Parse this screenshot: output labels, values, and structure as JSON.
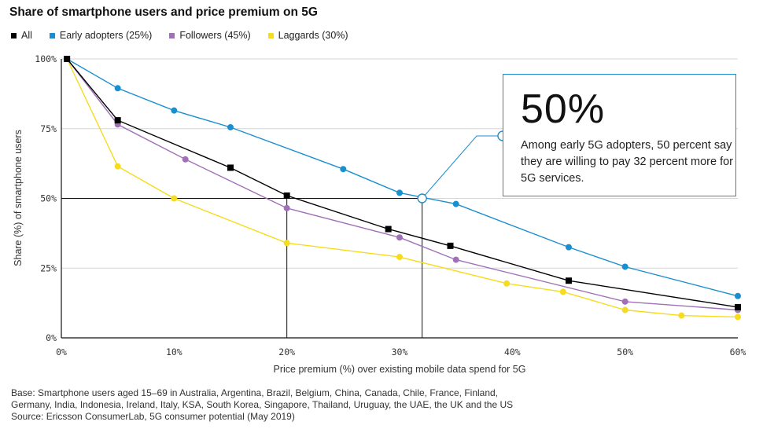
{
  "title": "Share of smartphone users and price premium on 5G",
  "legend": [
    {
      "label": "All",
      "color": "#000000"
    },
    {
      "label": "Early adopters (25%)",
      "color": "#1a8fcf"
    },
    {
      "label": "Followers (45%)",
      "color": "#a070b8"
    },
    {
      "label": "Laggards (30%)",
      "color": "#f5dc1e"
    }
  ],
  "callout": {
    "big": "50%",
    "text": "Among early 5G adopters, 50 percent say they are willing to pay 32 percent more for 5G services."
  },
  "footnote": {
    "line1": "Base: Smartphone users aged 15–69 in Australia, Argentina, Brazil, Belgium, China, Canada, Chile, France, Finland,",
    "line2": "Germany, India, Indonesia, Ireland, Italy, KSA, South Korea, Singapore, Thailand, Uruguay, the UAE, the UK and the US",
    "line3": "Source: Ericsson ConsumerLab, 5G consumer potential (May 2019)"
  },
  "chart_data": {
    "type": "line",
    "title": "Share of smartphone users and price premium on 5G",
    "xlabel": "Price premium (%) over existing mobile data spend for 5G",
    "ylabel": "Share (%) of smartphone users",
    "xlim": [
      0,
      60
    ],
    "ylim": [
      0,
      100
    ],
    "x_ticks": [
      "0%",
      "10%",
      "20%",
      "30%",
      "40%",
      "50%",
      "60%"
    ],
    "y_ticks": [
      "0%",
      "25%",
      "50%",
      "75%",
      "100%"
    ],
    "grid": "horizontal",
    "series": [
      {
        "name": "All",
        "color": "#000000",
        "marker": "square",
        "points": [
          [
            0.5,
            100
          ],
          [
            5,
            78
          ],
          [
            15,
            61
          ],
          [
            20,
            51
          ],
          [
            29,
            39
          ],
          [
            34.5,
            33
          ],
          [
            45,
            20.5
          ],
          [
            60,
            11
          ]
        ]
      },
      {
        "name": "Early adopters (25%)",
        "color": "#1a8fcf",
        "marker": "circle",
        "points": [
          [
            0.5,
            100
          ],
          [
            5,
            89.5
          ],
          [
            10,
            81.5
          ],
          [
            15,
            75.5
          ],
          [
            25,
            60.5
          ],
          [
            30,
            52
          ],
          [
            35,
            48
          ],
          [
            45,
            32.5
          ],
          [
            50,
            25.5
          ],
          [
            60,
            15
          ]
        ]
      },
      {
        "name": "Followers (45%)",
        "color": "#a070b8",
        "marker": "circle",
        "points": [
          [
            0.5,
            100
          ],
          [
            5,
            76.5
          ],
          [
            11,
            64
          ],
          [
            20,
            46.5
          ],
          [
            30,
            36
          ],
          [
            35,
            28
          ],
          [
            50,
            13
          ],
          [
            60,
            10
          ]
        ]
      },
      {
        "name": "Laggards (30%)",
        "color": "#f5dc1e",
        "marker": "circle",
        "points": [
          [
            0.5,
            100
          ],
          [
            5,
            61.5
          ],
          [
            10,
            50
          ],
          [
            20,
            34
          ],
          [
            30,
            29
          ],
          [
            39.5,
            19.5
          ],
          [
            44.5,
            16.5
          ],
          [
            50,
            10
          ],
          [
            55,
            8
          ],
          [
            60,
            7.5
          ]
        ]
      }
    ],
    "annotation": {
      "x": 32,
      "y": 50,
      "label": "50%"
    }
  }
}
